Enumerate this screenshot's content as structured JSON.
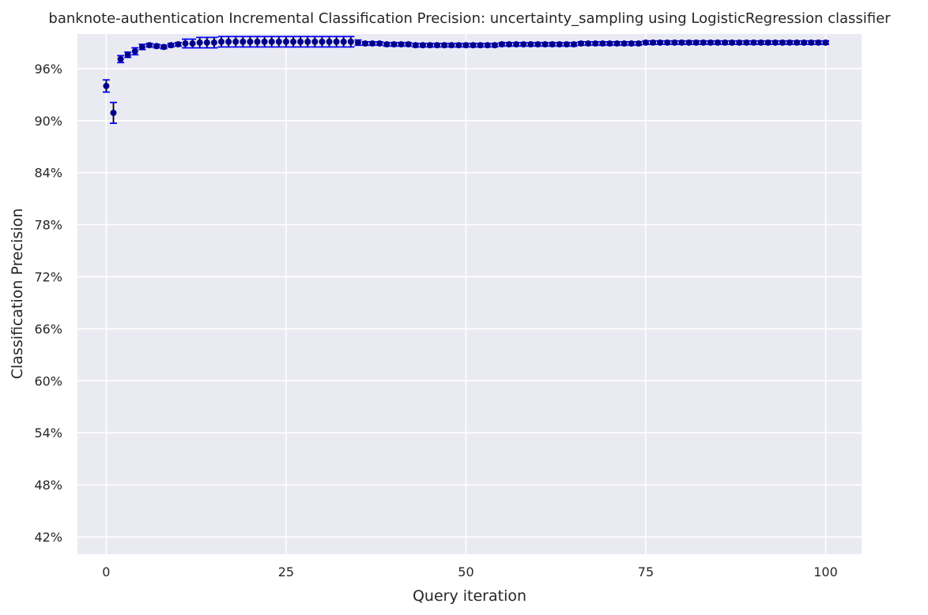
{
  "chart_data": {
    "type": "scatter",
    "title": "banknote-authentication Incremental Classification Precision: uncertainty_sampling using LogisticRegression classifier",
    "xlabel": "Query iteration",
    "ylabel": "Classification Precision",
    "xlim": [
      -4,
      105
    ],
    "ylim": [
      0.4,
      1.0
    ],
    "x_ticks": [
      0,
      25,
      50,
      75,
      100
    ],
    "x_tick_labels": [
      "0",
      "25",
      "50",
      "75",
      "100"
    ],
    "y_ticks": [
      0.42,
      0.48,
      0.54,
      0.6,
      0.66,
      0.72,
      0.78,
      0.84,
      0.9,
      0.96
    ],
    "y_tick_labels": [
      "42%",
      "48%",
      "54%",
      "60%",
      "66%",
      "72%",
      "78%",
      "84%",
      "90%",
      "96%"
    ],
    "grid": true,
    "background_color": "#eaeaf2",
    "grid_color": "#ffffff",
    "marker_color": "#00008b",
    "errorbar_color": "#0000ff",
    "series": [
      {
        "x": [
          0,
          1,
          2,
          3,
          4,
          5,
          6,
          7,
          8,
          9,
          10,
          11,
          12,
          13,
          14,
          15,
          16,
          17,
          18,
          19,
          20,
          21,
          22,
          23,
          24,
          25,
          26,
          27,
          28,
          29,
          30,
          31,
          32,
          33,
          34,
          35,
          36,
          37,
          38,
          39,
          40,
          41,
          42,
          43,
          44,
          45,
          46,
          47,
          48,
          49,
          50,
          51,
          52,
          53,
          54,
          55,
          56,
          57,
          58,
          59,
          60,
          61,
          62,
          63,
          64,
          65,
          66,
          67,
          68,
          69,
          70,
          71,
          72,
          73,
          74,
          75,
          76,
          77,
          78,
          79,
          80,
          81,
          82,
          83,
          84,
          85,
          86,
          87,
          88,
          89,
          90,
          91,
          92,
          93,
          94,
          95,
          96,
          97,
          98,
          99,
          100
        ],
        "y": [
          0.94,
          0.909,
          0.971,
          0.976,
          0.98,
          0.985,
          0.987,
          0.986,
          0.985,
          0.987,
          0.988,
          0.989,
          0.989,
          0.99,
          0.99,
          0.99,
          0.991,
          0.991,
          0.991,
          0.991,
          0.991,
          0.991,
          0.991,
          0.991,
          0.991,
          0.991,
          0.991,
          0.991,
          0.991,
          0.991,
          0.991,
          0.991,
          0.991,
          0.991,
          0.991,
          0.99,
          0.989,
          0.989,
          0.989,
          0.988,
          0.988,
          0.988,
          0.988,
          0.987,
          0.987,
          0.987,
          0.987,
          0.987,
          0.987,
          0.987,
          0.987,
          0.987,
          0.987,
          0.987,
          0.987,
          0.988,
          0.988,
          0.988,
          0.988,
          0.988,
          0.988,
          0.988,
          0.988,
          0.988,
          0.988,
          0.988,
          0.989,
          0.989,
          0.989,
          0.989,
          0.989,
          0.989,
          0.989,
          0.989,
          0.989,
          0.99,
          0.99,
          0.99,
          0.99,
          0.99,
          0.99,
          0.99,
          0.99,
          0.99,
          0.99,
          0.99,
          0.99,
          0.99,
          0.99,
          0.99,
          0.99,
          0.99,
          0.99,
          0.99,
          0.99,
          0.99,
          0.99,
          0.99,
          0.99,
          0.99,
          0.99
        ],
        "err": [
          0.007,
          0.012,
          0.004,
          0.003,
          0.004,
          0.003,
          0.002,
          0.002,
          0.002,
          0.002,
          0.002,
          0.005,
          0.005,
          0.006,
          0.006,
          0.006,
          0.006,
          0.006,
          0.006,
          0.006,
          0.006,
          0.006,
          0.006,
          0.006,
          0.006,
          0.006,
          0.006,
          0.006,
          0.006,
          0.006,
          0.006,
          0.006,
          0.006,
          0.006,
          0.006,
          0.003,
          0.002,
          0.002,
          0.002,
          0.002,
          0.002,
          0.002,
          0.002,
          0.002,
          0.002,
          0.002,
          0.002,
          0.002,
          0.002,
          0.002,
          0.002,
          0.002,
          0.002,
          0.002,
          0.002,
          0.002,
          0.002,
          0.002,
          0.002,
          0.002,
          0.002,
          0.002,
          0.002,
          0.002,
          0.002,
          0.002,
          0.002,
          0.002,
          0.002,
          0.002,
          0.002,
          0.002,
          0.002,
          0.002,
          0.002,
          0.002,
          0.002,
          0.002,
          0.002,
          0.002,
          0.002,
          0.002,
          0.002,
          0.002,
          0.002,
          0.002,
          0.002,
          0.002,
          0.002,
          0.002,
          0.002,
          0.002,
          0.002,
          0.002,
          0.002,
          0.002,
          0.002,
          0.002,
          0.002,
          0.002,
          0.002
        ]
      }
    ]
  }
}
